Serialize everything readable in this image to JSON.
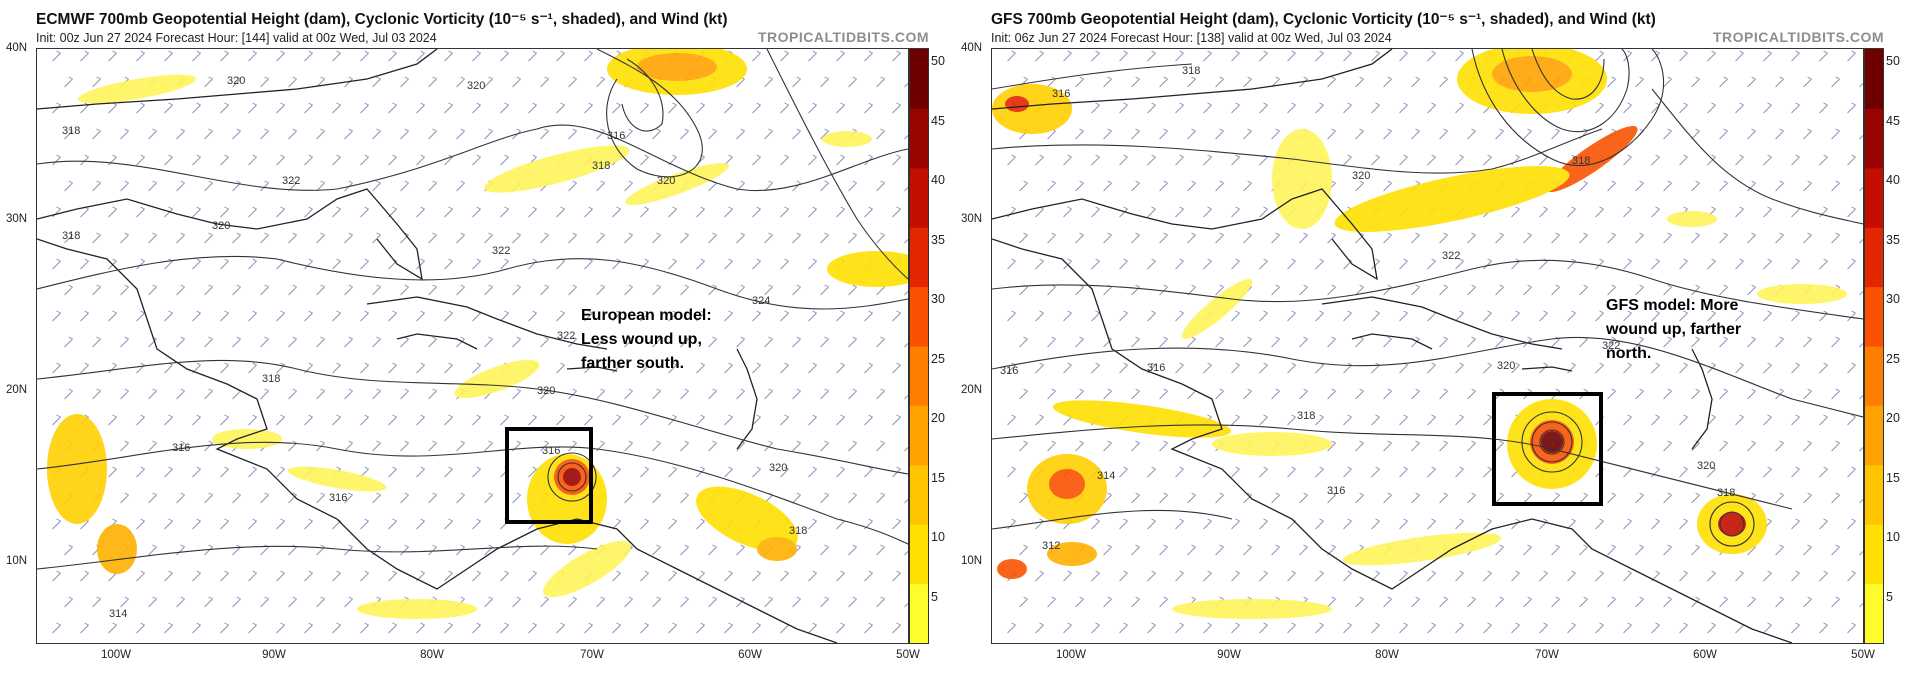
{
  "brand": "TROPICALTIDBITS.COM",
  "colorbar_ticks": [
    "50",
    "45",
    "40",
    "35",
    "30",
    "25",
    "20",
    "15",
    "10",
    "5"
  ],
  "colorbar_colors": [
    "#fffc2c",
    "#ffe000",
    "#ffc400",
    "#ffa200",
    "#ff7e00",
    "#fa5200",
    "#e22600",
    "#c30e00",
    "#9a0400",
    "#6e0000"
  ],
  "lat_labels": [
    "40N",
    "30N",
    "20N",
    "10N"
  ],
  "lon_labels": [
    "100W",
    "90W",
    "80W",
    "70W",
    "60W",
    "50W"
  ],
  "left": {
    "title": "ECMWF 700mb Geopotential Height (dam), Cyclonic Vorticity (10⁻⁵ s⁻¹, shaded), and Wind (kt)",
    "subtitle": "Init: 00z Jun 27 2024   Forecast Hour: [144]   valid at 00z Wed, Jul 03 2024",
    "annotation": [
      "European model:",
      "Less wound up,",
      "farther south."
    ],
    "contour_labels": [
      "320",
      "320",
      "318",
      "316",
      "318",
      "320",
      "322",
      "320",
      "322",
      "318",
      "324",
      "322",
      "320",
      "316",
      "316",
      "316",
      "320",
      "318",
      "314",
      "318"
    ]
  },
  "right": {
    "title": "GFS 700mb Geopotential Height (dam), Cyclonic Vorticity (10⁻⁵ s⁻¹, shaded), and Wind (kt)",
    "subtitle": "Init: 06z Jun 27 2024   Forecast Hour: [138]   valid at 00z Wed, Jul 03 2024",
    "annotation": [
      "GFS model: More",
      "wound up, farther",
      "north."
    ],
    "contour_labels": [
      "318",
      "316",
      "318",
      "320",
      "322",
      "322",
      "320",
      "316",
      "318",
      "316",
      "314",
      "312",
      "320",
      "318",
      "316"
    ]
  }
}
